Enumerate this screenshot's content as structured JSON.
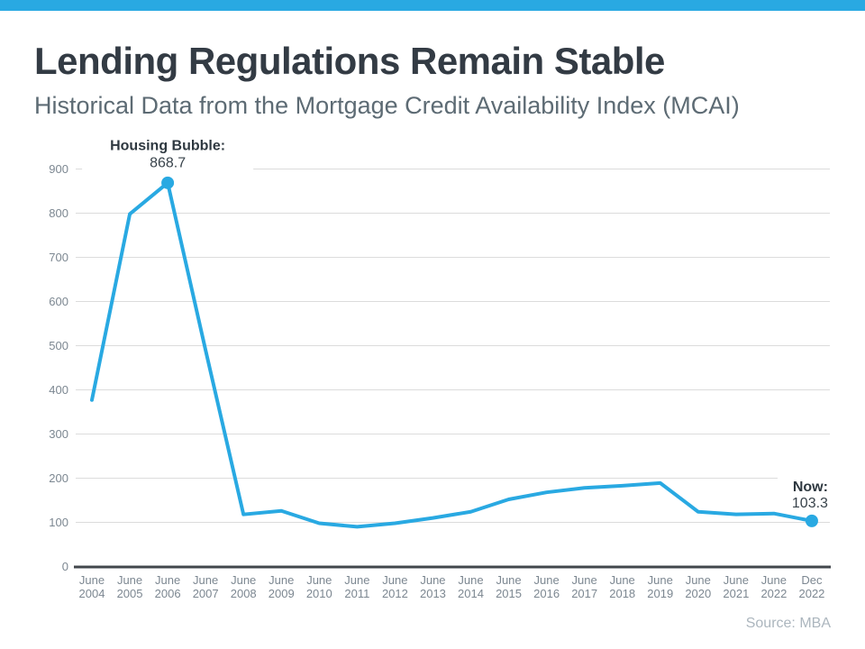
{
  "page": {
    "title": "Lending Regulations Remain Stable",
    "subtitle": "Historical Data from the Mortgage Credit Availability Index (MCAI)",
    "source": "Source: MBA",
    "accent_color": "#29A9E2"
  },
  "chart_data": {
    "type": "line",
    "series_name": "Mortgage Credit Availability Index (MCAI)",
    "categories": [
      "June 2004",
      "June 2005",
      "June 2006",
      "June 2007",
      "June 2008",
      "June 2009",
      "June 2010",
      "June 2011",
      "June 2012",
      "June 2013",
      "June 2014",
      "June 2015",
      "June 2016",
      "June 2017",
      "June 2018",
      "June 2019",
      "June 2020",
      "June 2021",
      "June 2022",
      "Dec 2022"
    ],
    "values": [
      377,
      798,
      868.7,
      490,
      118,
      126,
      98,
      90,
      98,
      110,
      124,
      152,
      168,
      178,
      183,
      189,
      124,
      118,
      120,
      103.3
    ],
    "ylim": [
      0,
      900
    ],
    "ytick_interval": 100,
    "grid": true,
    "legend": "none",
    "line_color": "#29A9E2",
    "marker_color": "#29A9E2",
    "gridline_color": "#DCDCDC",
    "axis_color": "#42474C",
    "tick_label_color": "#7C8791",
    "annotation_label_color": "#2E3840",
    "annotation_value_color": "#39434B",
    "annotations": [
      {
        "label": "Housing Bubble:",
        "value_text": "868.7",
        "category": "June 2006",
        "category_index": 2,
        "value": 868.7,
        "align": "center"
      },
      {
        "label": "Now:",
        "value_text": "103.3",
        "category": "Dec 2022",
        "category_index": 19,
        "value": 103.3,
        "align": "right"
      }
    ]
  }
}
